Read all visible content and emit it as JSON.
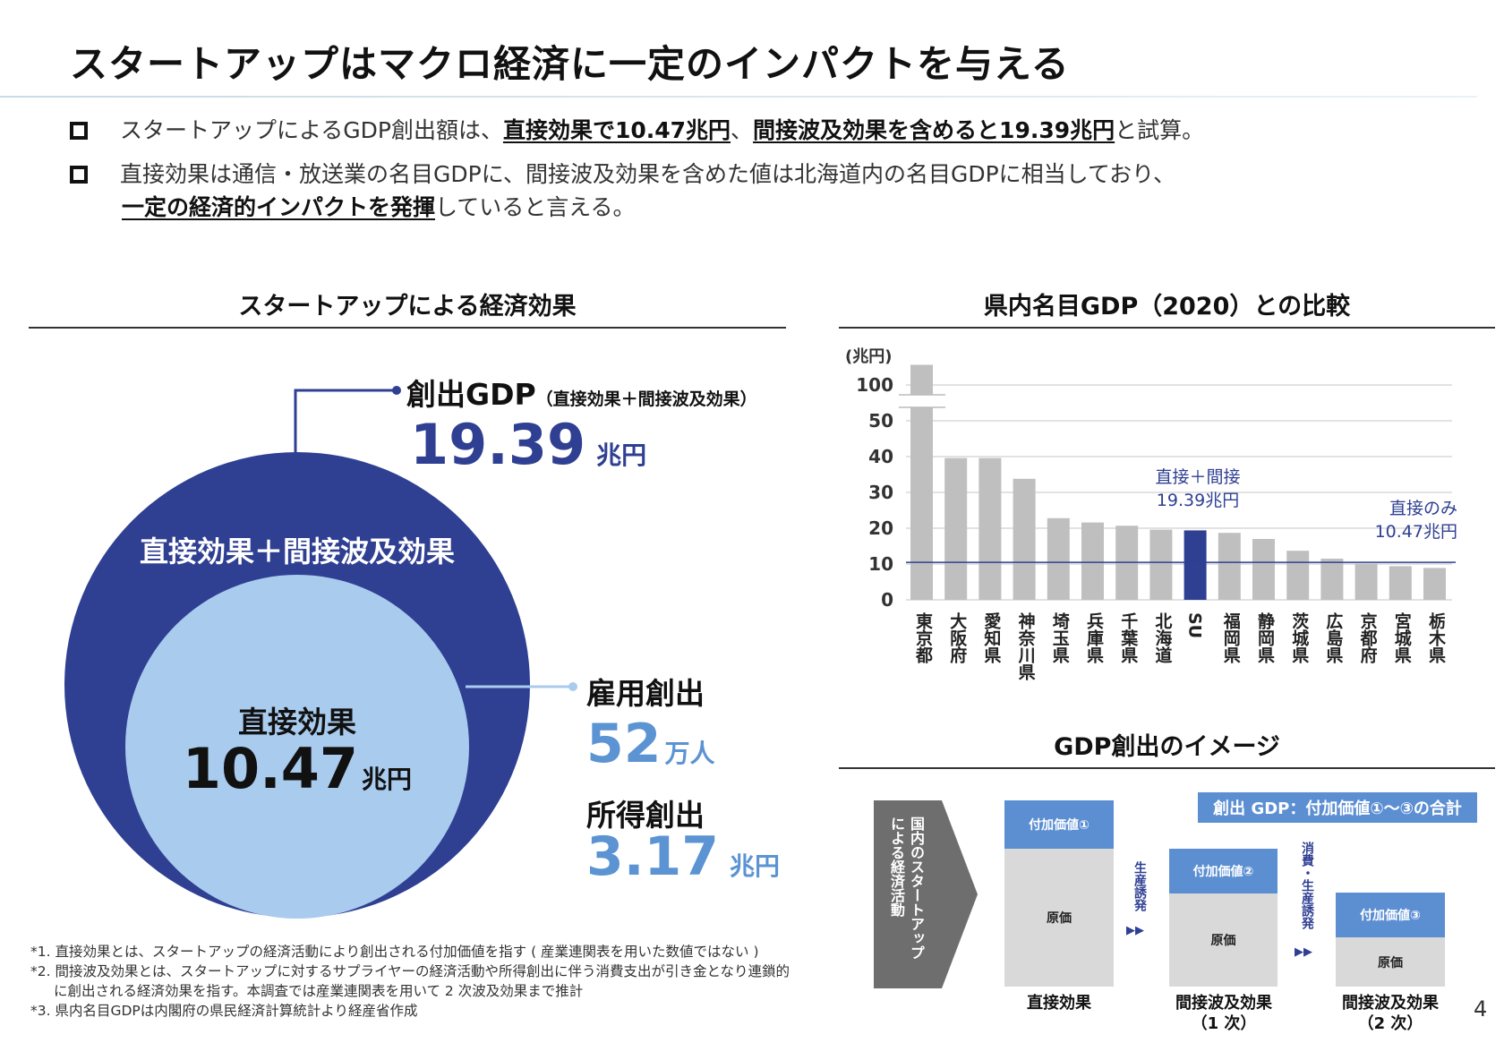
{
  "title": "スタートアップはマクロ経済に一定のインパクトを与える",
  "bullets": [
    {
      "pre": "スタートアップによるGDP創出額は、",
      "b1": "直接効果で10.47兆円",
      "mid": "、",
      "b2": "間接波及効果を含めると19.39兆円",
      "post": "と試算。"
    },
    {
      "line1": "直接効果は通信・放送業の名目GDPに、間接波及効果を含めた値は北海道内の名目GDPに相当しており、",
      "b1": "一定の経済的インパクトを発揮",
      "post": "していると言える。"
    }
  ],
  "left": {
    "heading": "スタートアップによる経済効果",
    "gdp_label": "創出GDP",
    "gdp_note": "（直接効果＋間接波及効果）",
    "gdp_value": "19.39",
    "gdp_unit": "兆円",
    "outer_label": "直接効果＋間接波及効果",
    "inner_label": "直接効果",
    "inner_value": "10.47",
    "inner_unit": "兆円",
    "employment_label": "雇用創出",
    "employment_value": "52",
    "employment_unit": "万人",
    "income_label": "所得創出",
    "income_value": "3.17",
    "income_unit": "兆円",
    "colors": {
      "outer": "#2f3f92",
      "inner": "#a9cbee",
      "accent": "#5b93d3"
    }
  },
  "footnotes": [
    "*1. 直接効果とは、スタートアップの経済活動により創出される付加価値を指す ( 産業連関表を用いた数値ではない )",
    "*2. 間接波及効果とは、スタートアップに対するサプライヤーの経済活動や所得創出に伴う消費支出が引き金となり連鎖的に創出される経済効果を指す。本調査では産業連関表を用いて 2 次波及効果まで推計",
    "*3. 県内名目GDPは内閣府の県民経済計算統計より経産省作成"
  ],
  "chart_data": {
    "type": "bar",
    "title": "県内名目GDP（2020）との比較",
    "ylabel": "(兆円)",
    "yticks": [
      "0",
      "10",
      "20",
      "30",
      "40",
      "50",
      "100"
    ],
    "axis_break": [
      50,
      100
    ],
    "grid": true,
    "categories": [
      "東京都",
      "大阪府",
      "愛知県",
      "神奈川県",
      "埼玉県",
      "兵庫県",
      "千葉県",
      "北海道",
      "SU",
      "福岡県",
      "静岡県",
      "茨城県",
      "広島県",
      "京都府",
      "宮城県",
      "栃木県"
    ],
    "values": [
      109,
      39.6,
      39.6,
      33.8,
      22.8,
      21.6,
      20.7,
      19.6,
      19.39,
      18.7,
      17.0,
      13.7,
      11.5,
      10.1,
      9.4,
      8.9
    ],
    "highlight": "SU",
    "colors": {
      "bar": "#bfbfbf",
      "highlight": "#2f3f92",
      "line": "#2f3f92"
    },
    "reference_line": {
      "value": 10.47,
      "label1": "直接のみ",
      "label2": "10.47兆円"
    },
    "annotation": {
      "label1": "直接＋間接",
      "label2": "19.39兆円"
    }
  },
  "diagram": {
    "heading": "GDP創出のイメージ",
    "arrow_text": [
      "国内のスタートアップ",
      "による経済活動"
    ],
    "banner": "創出 GDP：付加価値①～③の合計",
    "boxes": [
      {
        "top": "付加価値①",
        "bottom": "原価",
        "label1": "直接効果",
        "label2": ""
      },
      {
        "top": "付加価値②",
        "bottom": "原価",
        "label1": "間接波及効果",
        "label2": "（1 次）"
      },
      {
        "top": "付加価値③",
        "bottom": "原価",
        "label1": "間接波及効果",
        "label2": "（2 次）"
      }
    ],
    "step1": "生産誘発",
    "step2": "消費・生産誘発",
    "arrows": "▶▶"
  },
  "page_number": "4"
}
